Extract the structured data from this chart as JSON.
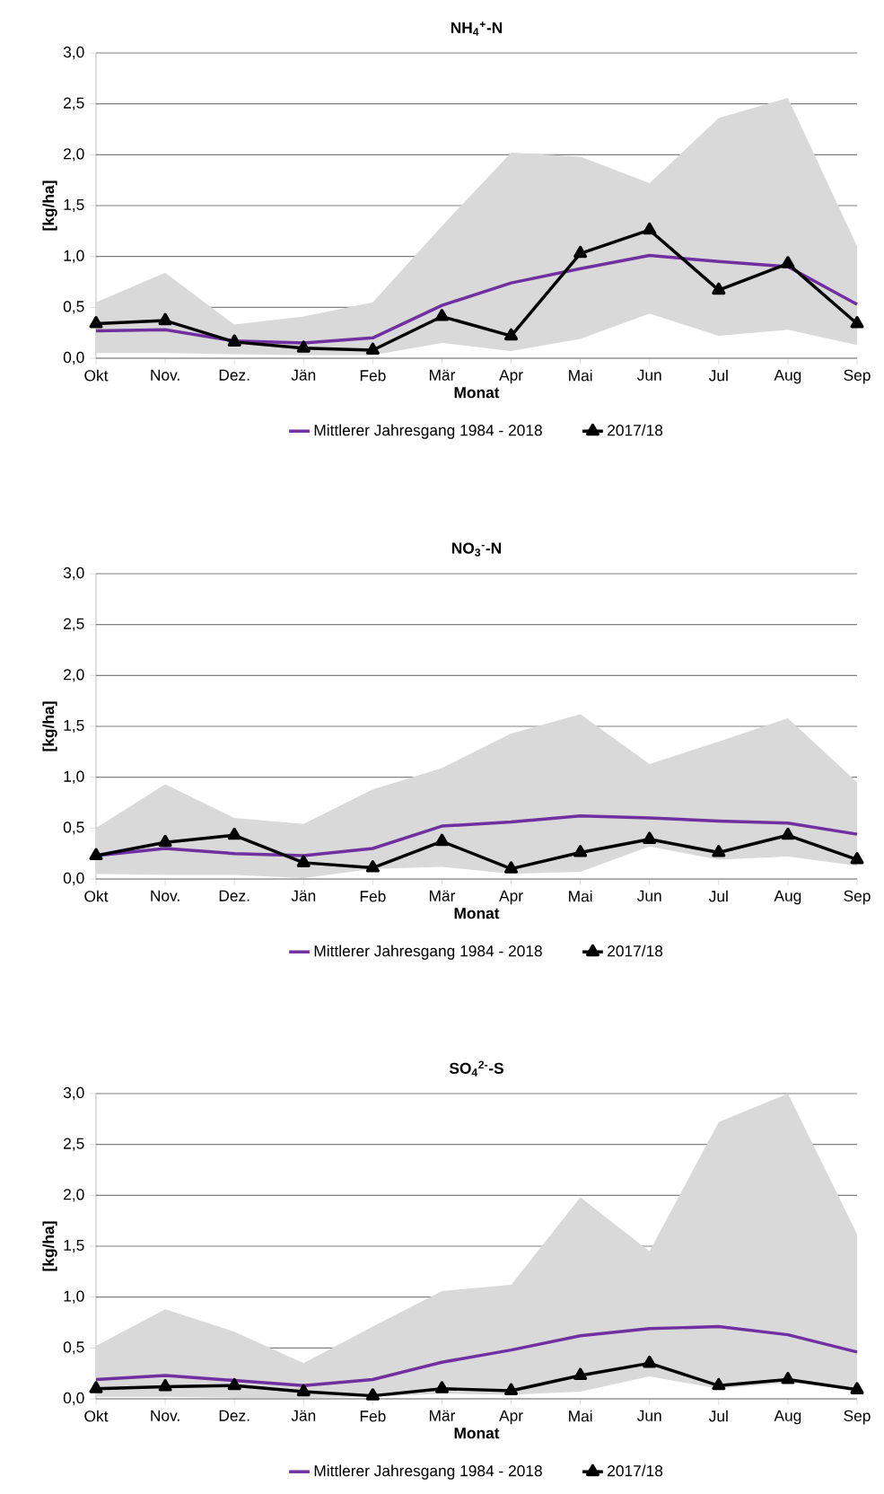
{
  "chart_data": [
    {
      "type": "line",
      "title": "NH$_{4}$$^{+}$-N",
      "xlabel": "Monat",
      "ylabel": "[kg/ha]",
      "categories": [
        "Okt",
        "Nov.",
        "Dez.",
        "Jän",
        "Feb",
        "Mär",
        "Apr",
        "Mai",
        "Jun",
        "Jul",
        "Aug",
        "Sep"
      ],
      "series": [
        {
          "name": "Mittlerer Jahresgang 1984 - 2018",
          "color": "#7030a0",
          "marker": "none",
          "values": [
            0.27,
            0.28,
            0.17,
            0.15,
            0.2,
            0.52,
            0.74,
            0.88,
            1.01,
            0.95,
            0.9,
            0.53
          ],
          "lower": [
            0.05,
            0.05,
            0.04,
            0.03,
            0.03,
            0.15,
            0.07,
            0.19,
            0.44,
            0.22,
            0.28,
            0.13
          ],
          "upper": [
            0.55,
            0.84,
            0.33,
            0.41,
            0.55,
            1.3,
            2.02,
            1.98,
            1.72,
            2.36,
            2.56,
            1.1
          ]
        },
        {
          "name": "2017/18",
          "color": "#000000",
          "marker": "triangle",
          "values": [
            0.34,
            0.37,
            0.16,
            0.1,
            0.08,
            0.41,
            0.22,
            1.03,
            1.26,
            0.67,
            0.93,
            0.34
          ]
        }
      ],
      "ylim": [
        0,
        3
      ],
      "yticks": [
        {
          "value": 0,
          "label": "0,0"
        },
        {
          "value": 0.5,
          "label": "0,5"
        },
        {
          "value": 1,
          "label": "1,0"
        },
        {
          "value": 1.5,
          "label": "1,5"
        },
        {
          "value": 2,
          "label": "2,0"
        },
        {
          "value": 2.5,
          "label": "2,5"
        },
        {
          "value": 3,
          "label": "3,0"
        }
      ],
      "grid": "y",
      "legend": "bottom"
    },
    {
      "type": "line",
      "title": "NO$_{3}$$^{-}$-N",
      "xlabel": "Monat",
      "ylabel": "[kg/ha]",
      "categories": [
        "Okt",
        "Nov.",
        "Dez.",
        "Jän",
        "Feb",
        "Mär",
        "Apr",
        "Mai",
        "Jun",
        "Jul",
        "Aug",
        "Sep"
      ],
      "series": [
        {
          "name": "Mittlerer Jahresgang 1984 - 2018",
          "color": "#7030a0",
          "marker": "none",
          "values": [
            0.23,
            0.3,
            0.25,
            0.23,
            0.3,
            0.52,
            0.56,
            0.62,
            0.6,
            0.57,
            0.55,
            0.44
          ],
          "lower": [
            0.05,
            0.04,
            0.04,
            0.01,
            0.1,
            0.12,
            0.05,
            0.07,
            0.32,
            0.19,
            0.22,
            0.13
          ],
          "upper": [
            0.5,
            0.93,
            0.6,
            0.54,
            0.88,
            1.09,
            1.43,
            1.62,
            1.13,
            1.35,
            1.58,
            0.95
          ]
        },
        {
          "name": "2017/18",
          "color": "#000000",
          "marker": "triangle",
          "values": [
            0.23,
            0.36,
            0.43,
            0.16,
            0.11,
            0.37,
            0.1,
            0.26,
            0.39,
            0.26,
            0.43,
            0.19
          ]
        }
      ],
      "ylim": [
        0,
        3
      ],
      "yticks": [
        {
          "value": 0,
          "label": "0,0"
        },
        {
          "value": 0.5,
          "label": "0,5"
        },
        {
          "value": 1,
          "label": "1,0"
        },
        {
          "value": 1.5,
          "label": "1,5"
        },
        {
          "value": 2,
          "label": "2,0"
        },
        {
          "value": 2.5,
          "label": "2,5"
        },
        {
          "value": 3,
          "label": "3,0"
        }
      ],
      "grid": "y",
      "legend": "bottom"
    },
    {
      "type": "line",
      "title": "SO$_{4}$$^{2-}$-S",
      "xlabel": "Monat",
      "ylabel": "[kg/ha]",
      "categories": [
        "Okt",
        "Nov.",
        "Dez.",
        "Jän",
        "Feb",
        "Mär",
        "Apr",
        "Mai",
        "Jun",
        "Jul",
        "Aug",
        "Sep"
      ],
      "series": [
        {
          "name": "Mittlerer Jahresgang 1984 - 2018",
          "color": "#7030a0",
          "marker": "none",
          "values": [
            0.19,
            0.23,
            0.18,
            0.13,
            0.19,
            0.36,
            0.48,
            0.62,
            0.69,
            0.71,
            0.63,
            0.46
          ],
          "lower": [
            0.02,
            0.02,
            0.01,
            0.01,
            0.02,
            0.05,
            0.04,
            0.07,
            0.22,
            0.1,
            0.16,
            0.1
          ],
          "upper": [
            0.52,
            0.88,
            0.66,
            0.35,
            0.71,
            1.06,
            1.12,
            1.98,
            1.45,
            2.72,
            3.0,
            1.62
          ]
        },
        {
          "name": "2017/18",
          "color": "#000000",
          "marker": "triangle",
          "values": [
            0.1,
            0.12,
            0.13,
            0.07,
            0.03,
            0.1,
            0.08,
            0.23,
            0.35,
            0.13,
            0.19,
            0.09
          ]
        }
      ],
      "ylim": [
        0,
        3
      ],
      "yticks": [
        {
          "value": 0,
          "label": "0,0"
        },
        {
          "value": 0.5,
          "label": "0,5"
        },
        {
          "value": 1,
          "label": "1,0"
        },
        {
          "value": 1.5,
          "label": "1,5"
        },
        {
          "value": 2,
          "label": "2,0"
        },
        {
          "value": 2.5,
          "label": "2,5"
        },
        {
          "value": 3,
          "label": "3,0"
        }
      ],
      "grid": "y",
      "legend": "bottom"
    }
  ]
}
